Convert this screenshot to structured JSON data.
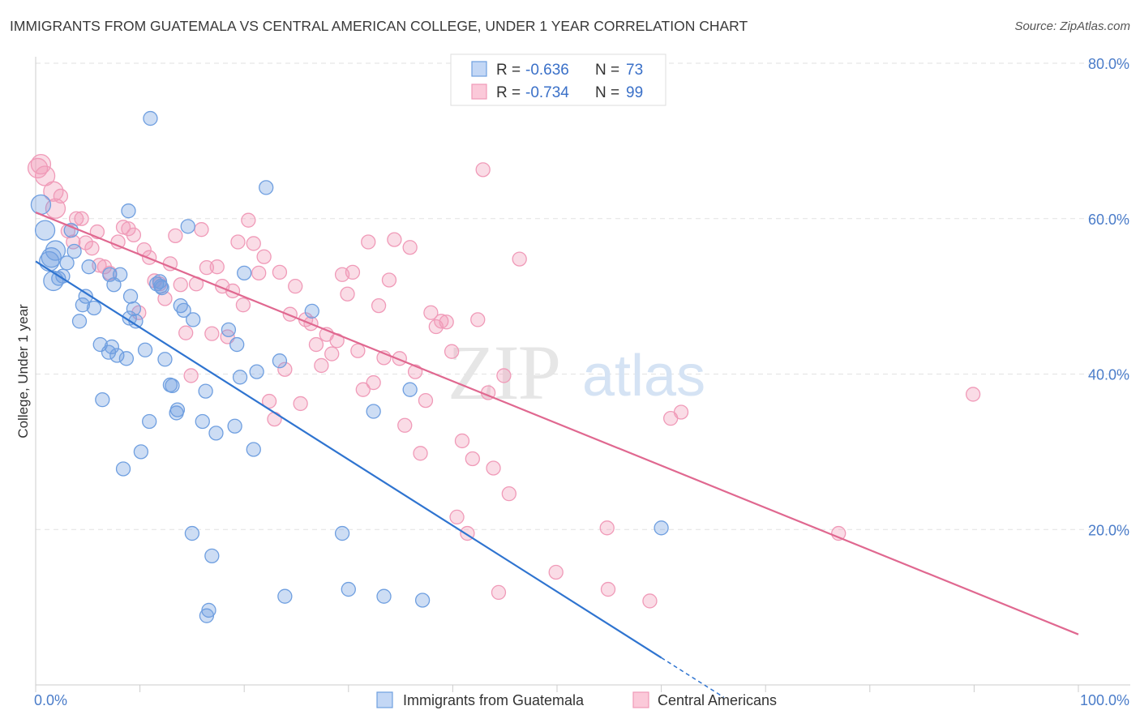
{
  "header": {
    "title": "IMMIGRANTS FROM GUATEMALA VS CENTRAL AMERICAN COLLEGE, UNDER 1 YEAR CORRELATION CHART",
    "source": "Source: ZipAtlas.com"
  },
  "watermark": {
    "part1": "ZIP",
    "part2": "atlas"
  },
  "legend": {
    "r_label": "R =",
    "n_label": "N =",
    "entries": [
      {
        "r": "-0.636",
        "n": "73"
      },
      {
        "r": "-0.734",
        "n": "99"
      }
    ]
  },
  "chart_data": {
    "type": "scatter",
    "title": "IMMIGRANTS FROM GUATEMALA VS CENTRAL AMERICAN COLLEGE, UNDER 1 YEAR CORRELATION CHART",
    "xlabel": "",
    "ylabel": "College, Under 1 year",
    "xlim": [
      0,
      100
    ],
    "ylim": [
      0,
      80
    ],
    "x_tick_labels": [
      "0.0%",
      "100.0%"
    ],
    "y_ticks": [
      20,
      40,
      60,
      80
    ],
    "y_tick_labels": [
      "20.0%",
      "40.0%",
      "60.0%",
      "80.0%"
    ],
    "grid": "horizontal dashed",
    "legend_position": "top-center",
    "colors": {
      "guatemala": "#6f9fe0",
      "central": "#f09ab8",
      "guatemala_line": "#2f74d0",
      "central_line": "#e06890"
    },
    "series": [
      {
        "name": "Immigrants from Guatemala",
        "r": -0.636,
        "n": 73,
        "trend": {
          "x0": 0,
          "y0": 54.5,
          "x1": 60,
          "y1": 3.5,
          "dashed_to_x": 66
        },
        "points": [
          [
            0.5,
            61.8
          ],
          [
            0.9,
            58.5
          ],
          [
            1.3,
            54.5
          ],
          [
            1.5,
            55.0
          ],
          [
            1.7,
            52.0
          ],
          [
            1.9,
            55.9
          ],
          [
            2.2,
            52.3
          ],
          [
            2.6,
            52.6
          ],
          [
            3.0,
            54.3
          ],
          [
            3.4,
            58.5
          ],
          [
            3.7,
            55.8
          ],
          [
            4.2,
            46.8
          ],
          [
            4.5,
            48.9
          ],
          [
            4.8,
            50.0
          ],
          [
            5.1,
            53.8
          ],
          [
            5.6,
            48.5
          ],
          [
            6.2,
            43.8
          ],
          [
            6.4,
            36.7
          ],
          [
            7.1,
            52.8
          ],
          [
            7.3,
            43.5
          ],
          [
            7.5,
            51.5
          ],
          [
            7.8,
            42.4
          ],
          [
            8.1,
            52.8
          ],
          [
            8.4,
            27.8
          ],
          [
            8.7,
            42.0
          ],
          [
            8.9,
            61.0
          ],
          [
            9.1,
            50.0
          ],
          [
            9.4,
            48.4
          ],
          [
            9.6,
            46.8
          ],
          [
            10.1,
            30.0
          ],
          [
            10.5,
            43.1
          ],
          [
            10.9,
            33.9
          ],
          [
            11.0,
            72.9
          ],
          [
            11.6,
            51.6
          ],
          [
            11.9,
            51.9
          ],
          [
            12.1,
            51.1
          ],
          [
            12.4,
            41.9
          ],
          [
            12.9,
            38.6
          ],
          [
            13.1,
            38.5
          ],
          [
            13.5,
            35.0
          ],
          [
            13.6,
            35.4
          ],
          [
            13.9,
            48.8
          ],
          [
            14.2,
            48.2
          ],
          [
            14.6,
            59.0
          ],
          [
            15.1,
            47.0
          ],
          [
            16.0,
            33.9
          ],
          [
            16.3,
            37.8
          ],
          [
            16.6,
            9.6
          ],
          [
            16.9,
            16.6
          ],
          [
            17.3,
            32.4
          ],
          [
            18.5,
            45.7
          ],
          [
            19.1,
            33.3
          ],
          [
            19.3,
            43.8
          ],
          [
            19.6,
            39.6
          ],
          [
            20.0,
            53.0
          ],
          [
            20.9,
            30.3
          ],
          [
            21.2,
            40.3
          ],
          [
            22.1,
            64.0
          ],
          [
            23.4,
            41.7
          ],
          [
            23.9,
            11.4
          ],
          [
            26.5,
            48.1
          ],
          [
            29.4,
            19.5
          ],
          [
            30.0,
            12.3
          ],
          [
            32.4,
            35.2
          ],
          [
            33.4,
            11.4
          ],
          [
            35.9,
            38.0
          ],
          [
            37.1,
            10.9
          ],
          [
            60.0,
            20.2
          ],
          [
            15.0,
            19.5
          ],
          [
            16.4,
            8.9
          ],
          [
            9.0,
            47.2
          ],
          [
            7.0,
            42.8
          ],
          [
            12.0,
            51.3
          ]
        ]
      },
      {
        "name": "Central Americans",
        "r": -0.734,
        "n": 99,
        "trend": {
          "x0": 0,
          "y0": 60.8,
          "x1": 100,
          "y1": 6.5
        },
        "points": [
          [
            0.2,
            66.5
          ],
          [
            0.5,
            67.0
          ],
          [
            0.9,
            65.5
          ],
          [
            1.7,
            63.5
          ],
          [
            1.9,
            61.3
          ],
          [
            2.4,
            62.9
          ],
          [
            3.1,
            58.4
          ],
          [
            3.6,
            57.0
          ],
          [
            3.9,
            60.0
          ],
          [
            4.4,
            60.0
          ],
          [
            4.8,
            56.9
          ],
          [
            5.4,
            56.2
          ],
          [
            5.9,
            58.3
          ],
          [
            6.1,
            54.0
          ],
          [
            6.6,
            53.8
          ],
          [
            7.1,
            53.0
          ],
          [
            7.9,
            57.0
          ],
          [
            8.4,
            58.9
          ],
          [
            8.9,
            58.7
          ],
          [
            9.4,
            57.9
          ],
          [
            9.9,
            47.9
          ],
          [
            10.4,
            56.0
          ],
          [
            10.9,
            55.0
          ],
          [
            11.4,
            52.0
          ],
          [
            11.9,
            51.6
          ],
          [
            12.4,
            49.7
          ],
          [
            12.9,
            54.2
          ],
          [
            13.4,
            57.8
          ],
          [
            13.9,
            51.5
          ],
          [
            14.4,
            45.3
          ],
          [
            14.9,
            39.8
          ],
          [
            15.4,
            51.6
          ],
          [
            15.9,
            58.6
          ],
          [
            16.4,
            53.7
          ],
          [
            16.9,
            45.2
          ],
          [
            17.4,
            53.8
          ],
          [
            17.9,
            51.3
          ],
          [
            18.4,
            44.8
          ],
          [
            18.9,
            50.7
          ],
          [
            19.4,
            57.0
          ],
          [
            19.9,
            48.9
          ],
          [
            20.4,
            59.8
          ],
          [
            20.9,
            56.8
          ],
          [
            21.4,
            53.0
          ],
          [
            21.9,
            55.1
          ],
          [
            22.4,
            36.5
          ],
          [
            22.9,
            34.2
          ],
          [
            23.4,
            53.1
          ],
          [
            23.9,
            40.6
          ],
          [
            24.4,
            47.7
          ],
          [
            24.9,
            51.3
          ],
          [
            25.4,
            36.2
          ],
          [
            25.9,
            47.0
          ],
          [
            26.4,
            46.5
          ],
          [
            26.9,
            43.8
          ],
          [
            27.4,
            41.1
          ],
          [
            27.9,
            45.1
          ],
          [
            28.4,
            42.6
          ],
          [
            28.9,
            44.3
          ],
          [
            29.4,
            52.8
          ],
          [
            29.9,
            50.3
          ],
          [
            30.4,
            53.1
          ],
          [
            30.9,
            43.0
          ],
          [
            31.4,
            38.0
          ],
          [
            31.9,
            57.0
          ],
          [
            32.4,
            38.9
          ],
          [
            32.9,
            48.8
          ],
          [
            33.4,
            42.1
          ],
          [
            33.9,
            52.1
          ],
          [
            34.4,
            57.3
          ],
          [
            34.9,
            42.0
          ],
          [
            35.4,
            33.4
          ],
          [
            35.9,
            56.3
          ],
          [
            36.4,
            40.3
          ],
          [
            36.9,
            29.8
          ],
          [
            37.4,
            36.6
          ],
          [
            37.9,
            47.9
          ],
          [
            38.4,
            46.1
          ],
          [
            38.9,
            46.8
          ],
          [
            39.4,
            46.7
          ],
          [
            39.9,
            42.9
          ],
          [
            40.4,
            21.6
          ],
          [
            40.9,
            31.4
          ],
          [
            41.4,
            19.5
          ],
          [
            41.9,
            29.1
          ],
          [
            42.4,
            47.0
          ],
          [
            42.9,
            66.3
          ],
          [
            43.4,
            37.6
          ],
          [
            43.9,
            27.9
          ],
          [
            44.4,
            11.9
          ],
          [
            44.9,
            39.8
          ],
          [
            45.4,
            24.6
          ],
          [
            46.4,
            54.8
          ],
          [
            49.9,
            14.5
          ],
          [
            54.9,
            12.3
          ],
          [
            58.9,
            10.8
          ],
          [
            60.9,
            34.3
          ],
          [
            61.9,
            35.1
          ],
          [
            89.9,
            37.4
          ]
        ]
      }
    ],
    "extra_points_central": [
      [
        77.0,
        19.5
      ],
      [
        54.8,
        20.2
      ]
    ]
  },
  "bottom_legend": {
    "items": [
      {
        "label": "Immigrants from Guatemala"
      },
      {
        "label": "Central Americans"
      }
    ]
  }
}
